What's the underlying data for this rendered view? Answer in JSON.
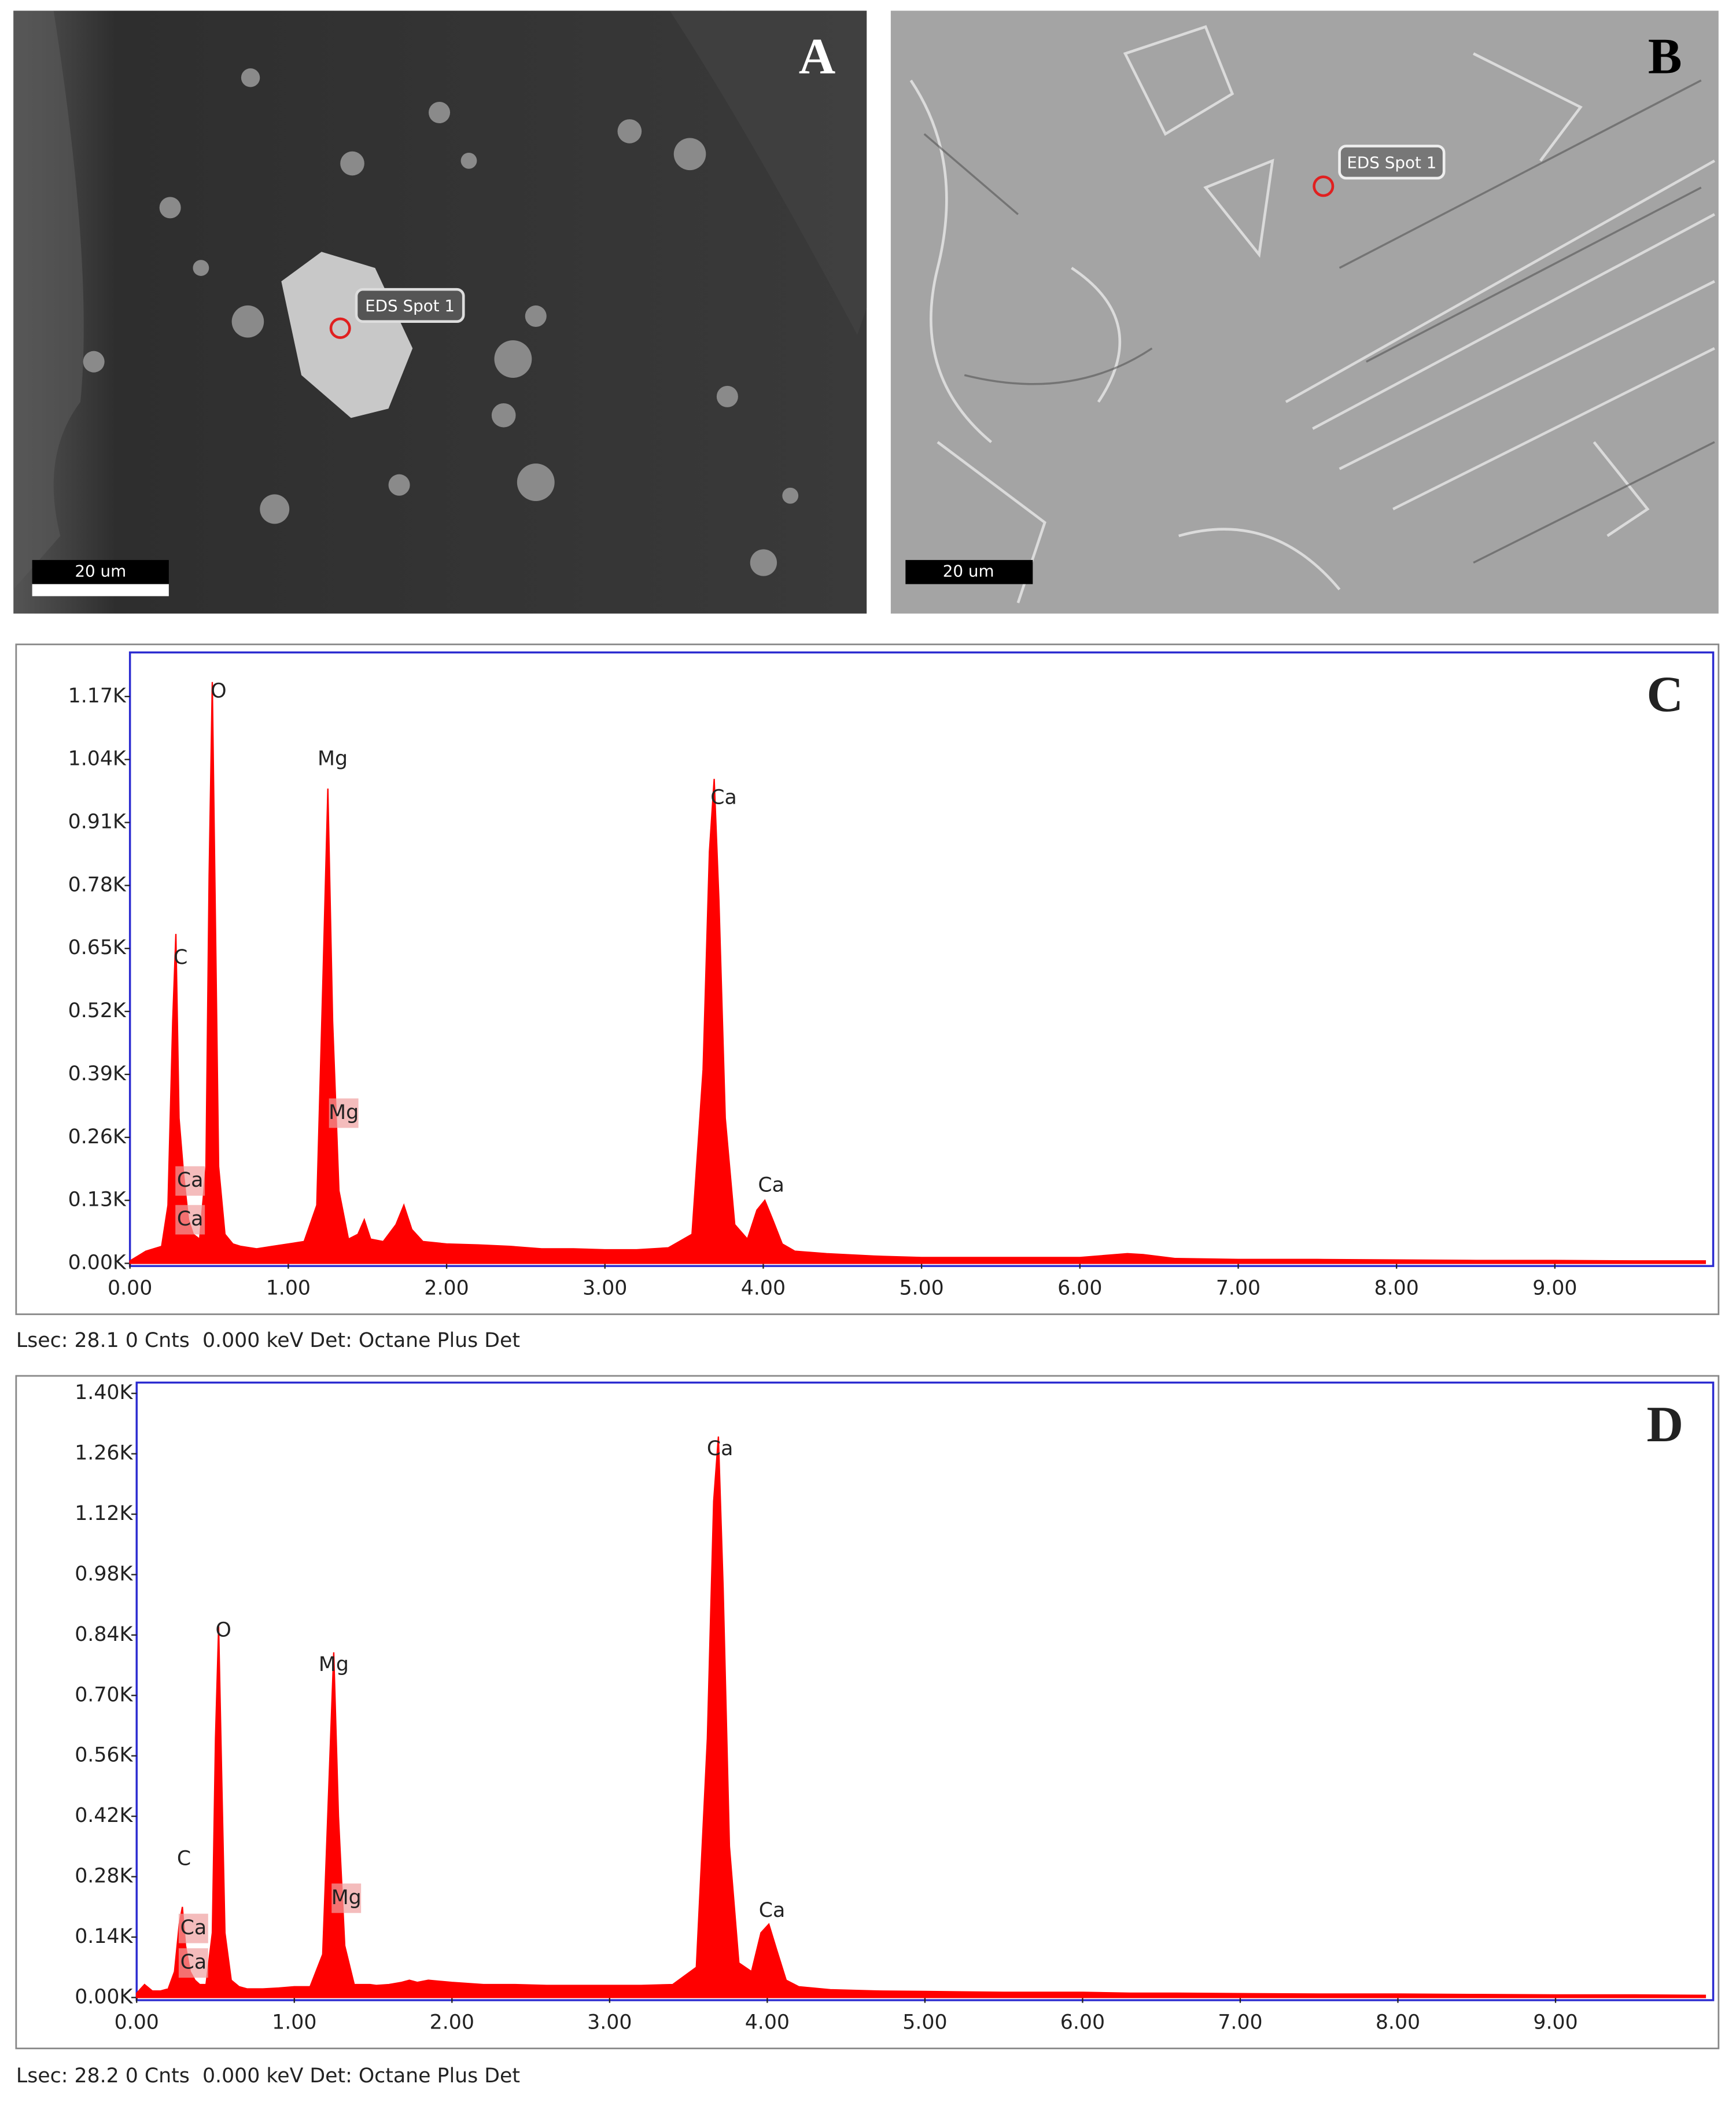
{
  "images": [
    {
      "label": "A",
      "spot": "EDS Spot 1",
      "scale_bar": "20 um"
    },
    {
      "label": "B",
      "spot": "EDS Spot 1",
      "scale_bar": "20 um"
    }
  ],
  "chart_data": [
    {
      "type": "area",
      "panel_label": "C",
      "color": "#ff0000",
      "caption": "Lsec: 28.1 0 Cnts  0.000 keV Det: Octane Plus Det",
      "x": [
        0,
        0.05,
        0.1,
        0.15,
        0.2,
        0.24,
        0.27,
        0.29,
        0.31,
        0.34,
        0.37,
        0.4,
        0.44,
        0.48,
        0.5,
        0.52,
        0.54,
        0.56,
        0.6,
        0.65,
        0.7,
        0.8,
        0.9,
        1.0,
        1.1,
        1.18,
        1.22,
        1.25,
        1.28,
        1.32,
        1.38,
        1.44,
        1.48,
        1.52,
        1.6,
        1.68,
        1.73,
        1.78,
        1.85,
        2.0,
        2.2,
        2.4,
        2.6,
        2.8,
        3.0,
        3.2,
        3.4,
        3.55,
        3.62,
        3.66,
        3.69,
        3.72,
        3.76,
        3.82,
        3.9,
        3.96,
        4.01,
        4.06,
        4.12,
        4.2,
        4.4,
        4.7,
        5.0,
        5.5,
        6.0,
        6.3,
        6.4,
        6.6,
        7.0,
        7.5,
        8.0,
        8.5,
        9.0,
        9.5,
        9.95
      ],
      "values": [
        5,
        15,
        25,
        30,
        35,
        120,
        500,
        680,
        300,
        180,
        90,
        60,
        50,
        200,
        800,
        1200,
        700,
        200,
        60,
        40,
        35,
        30,
        35,
        40,
        45,
        120,
        600,
        980,
        500,
        150,
        50,
        60,
        90,
        50,
        45,
        80,
        120,
        70,
        45,
        40,
        38,
        35,
        30,
        30,
        28,
        28,
        32,
        60,
        400,
        850,
        1000,
        750,
        300,
        80,
        50,
        110,
        130,
        90,
        40,
        25,
        20,
        15,
        12,
        12,
        12,
        20,
        18,
        10,
        8,
        8,
        7,
        6,
        6,
        5,
        5
      ],
      "annotations": [
        "O",
        "Mg",
        "Ca",
        "C",
        "Mg",
        "Ca",
        "Ca",
        "Ca"
      ],
      "xlim": [
        0,
        10
      ],
      "xticks": [
        {
          "value": 0,
          "label": "0.00"
        },
        {
          "value": 1,
          "label": "1.00"
        },
        {
          "value": 2,
          "label": "2.00"
        },
        {
          "value": 3,
          "label": "3.00"
        },
        {
          "value": 4,
          "label": "4.00"
        },
        {
          "value": 5,
          "label": "5.00"
        },
        {
          "value": 6,
          "label": "6.00"
        },
        {
          "value": 7,
          "label": "7.00"
        },
        {
          "value": 8,
          "label": "8.00"
        },
        {
          "value": 9,
          "label": "9.00"
        }
      ],
      "ylim": [
        0,
        1261
      ],
      "yticks": [
        {
          "value": 0,
          "label": "0.00K"
        },
        {
          "value": 130,
          "label": "0.13K"
        },
        {
          "value": 260,
          "label": "0.26K"
        },
        {
          "value": 390,
          "label": "0.39K"
        },
        {
          "value": 520,
          "label": "0.52K"
        },
        {
          "value": 650,
          "label": "0.65K"
        },
        {
          "value": 780,
          "label": "0.78K"
        },
        {
          "value": 910,
          "label": "0.91K"
        },
        {
          "value": 1040,
          "label": "1.04K"
        },
        {
          "value": 1170,
          "label": "1.17K"
        }
      ]
    },
    {
      "type": "area",
      "panel_label": "D",
      "color": "#ff0000",
      "caption": "Lsec: 28.2 0 Cnts  0.000 keV Det: Octane Plus Det",
      "x": [
        0,
        0.05,
        0.1,
        0.15,
        0.2,
        0.24,
        0.27,
        0.29,
        0.31,
        0.34,
        0.37,
        0.4,
        0.44,
        0.48,
        0.5,
        0.52,
        0.54,
        0.56,
        0.6,
        0.65,
        0.7,
        0.8,
        0.9,
        1.0,
        1.1,
        1.18,
        1.22,
        1.25,
        1.28,
        1.32,
        1.38,
        1.44,
        1.48,
        1.52,
        1.6,
        1.68,
        1.73,
        1.78,
        1.85,
        2.0,
        2.2,
        2.4,
        2.6,
        2.8,
        3.0,
        3.2,
        3.4,
        3.55,
        3.62,
        3.66,
        3.69,
        3.72,
        3.76,
        3.82,
        3.9,
        3.96,
        4.01,
        4.06,
        4.12,
        4.2,
        4.4,
        4.7,
        5.0,
        5.5,
        6.0,
        6.3,
        6.4,
        6.6,
        7.0,
        7.5,
        8.0,
        8.5,
        9.0,
        9.5,
        9.95
      ],
      "values": [
        10,
        30,
        15,
        15,
        20,
        60,
        170,
        210,
        120,
        60,
        40,
        30,
        30,
        150,
        600,
        860,
        500,
        150,
        40,
        25,
        20,
        20,
        22,
        25,
        25,
        100,
        500,
        800,
        420,
        120,
        30,
        30,
        30,
        28,
        30,
        35,
        40,
        35,
        40,
        35,
        30,
        30,
        28,
        28,
        28,
        28,
        30,
        70,
        600,
        1150,
        1300,
        950,
        350,
        80,
        60,
        150,
        170,
        110,
        40,
        25,
        18,
        15,
        14,
        12,
        12,
        10,
        10,
        10,
        9,
        8,
        8,
        7,
        6,
        6,
        5
      ],
      "annotations": [
        "Ca",
        "O",
        "Mg",
        "C",
        "Mg",
        "Ca",
        "Ca",
        "Ca"
      ],
      "xlim": [
        0,
        10
      ],
      "xticks": [
        {
          "value": 0,
          "label": "0.00"
        },
        {
          "value": 1,
          "label": "1.00"
        },
        {
          "value": 2,
          "label": "2.00"
        },
        {
          "value": 3,
          "label": "3.00"
        },
        {
          "value": 4,
          "label": "4.00"
        },
        {
          "value": 5,
          "label": "5.00"
        },
        {
          "value": 6,
          "label": "6.00"
        },
        {
          "value": 7,
          "label": "7.00"
        },
        {
          "value": 8,
          "label": "8.00"
        },
        {
          "value": 9,
          "label": "9.00"
        }
      ],
      "ylim": [
        0,
        1425
      ],
      "yticks": [
        {
          "value": 0,
          "label": "0.00K"
        },
        {
          "value": 140,
          "label": "0.14K"
        },
        {
          "value": 280,
          "label": "0.28K"
        },
        {
          "value": 420,
          "label": "0.42K"
        },
        {
          "value": 560,
          "label": "0.56K"
        },
        {
          "value": 700,
          "label": "0.70K"
        },
        {
          "value": 840,
          "label": "0.84K"
        },
        {
          "value": 980,
          "label": "0.98K"
        },
        {
          "value": 1120,
          "label": "1.12K"
        },
        {
          "value": 1260,
          "label": "1.26K"
        },
        {
          "value": 1400,
          "label": "1.40K"
        }
      ]
    }
  ]
}
